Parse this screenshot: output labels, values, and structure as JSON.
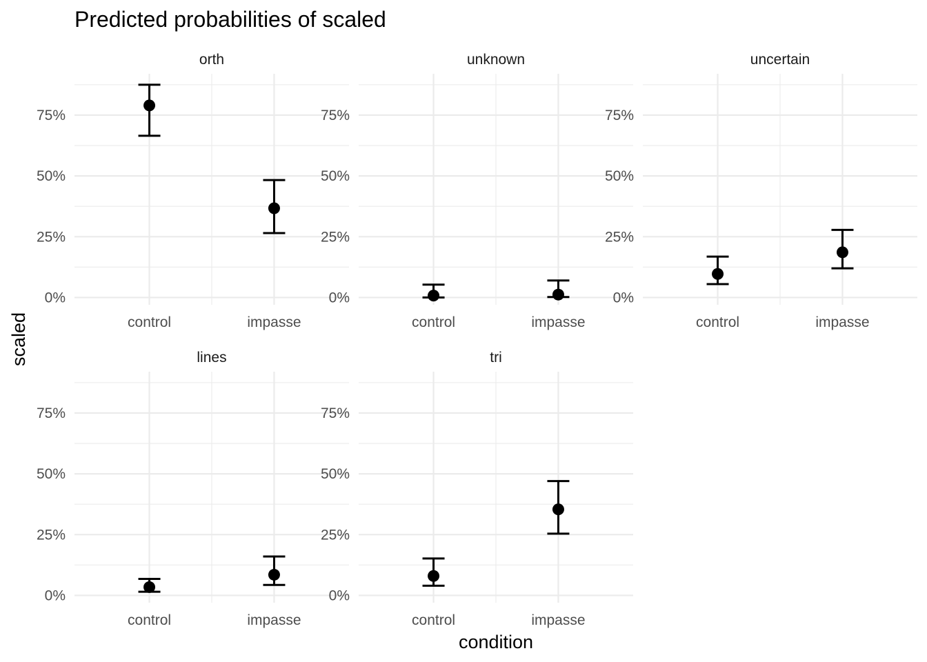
{
  "chart_data": {
    "type": "scatter",
    "title": "Predicted probabilities of scaled",
    "xlabel": "condition",
    "ylabel": "scaled",
    "categories": [
      "control",
      "impasse"
    ],
    "ylim": [
      -0.03,
      0.92
    ],
    "y_ticks": [
      0,
      0.25,
      0.5,
      0.75
    ],
    "y_tick_labels": [
      "0%",
      "25%",
      "50%",
      "75%"
    ],
    "grid": true,
    "panels": [
      {
        "name": "orth",
        "points": [
          {
            "x": "control",
            "y": 0.79,
            "lo": 0.665,
            "hi": 0.875
          },
          {
            "x": "impasse",
            "y": 0.367,
            "lo": 0.265,
            "hi": 0.483
          }
        ]
      },
      {
        "name": "unknown",
        "points": [
          {
            "x": "control",
            "y": 0.008,
            "lo": 0.0,
            "hi": 0.053
          },
          {
            "x": "impasse",
            "y": 0.012,
            "lo": 0.002,
            "hi": 0.07
          }
        ]
      },
      {
        "name": "uncertain",
        "points": [
          {
            "x": "control",
            "y": 0.097,
            "lo": 0.055,
            "hi": 0.168
          },
          {
            "x": "impasse",
            "y": 0.186,
            "lo": 0.12,
            "hi": 0.278
          }
        ]
      },
      {
        "name": "lines",
        "points": [
          {
            "x": "control",
            "y": 0.034,
            "lo": 0.015,
            "hi": 0.068
          },
          {
            "x": "impasse",
            "y": 0.085,
            "lo": 0.043,
            "hi": 0.16
          }
        ]
      },
      {
        "name": "tri",
        "points": [
          {
            "x": "control",
            "y": 0.08,
            "lo": 0.04,
            "hi": 0.152
          },
          {
            "x": "impasse",
            "y": 0.354,
            "lo": 0.254,
            "hi": 0.47
          }
        ]
      }
    ]
  }
}
